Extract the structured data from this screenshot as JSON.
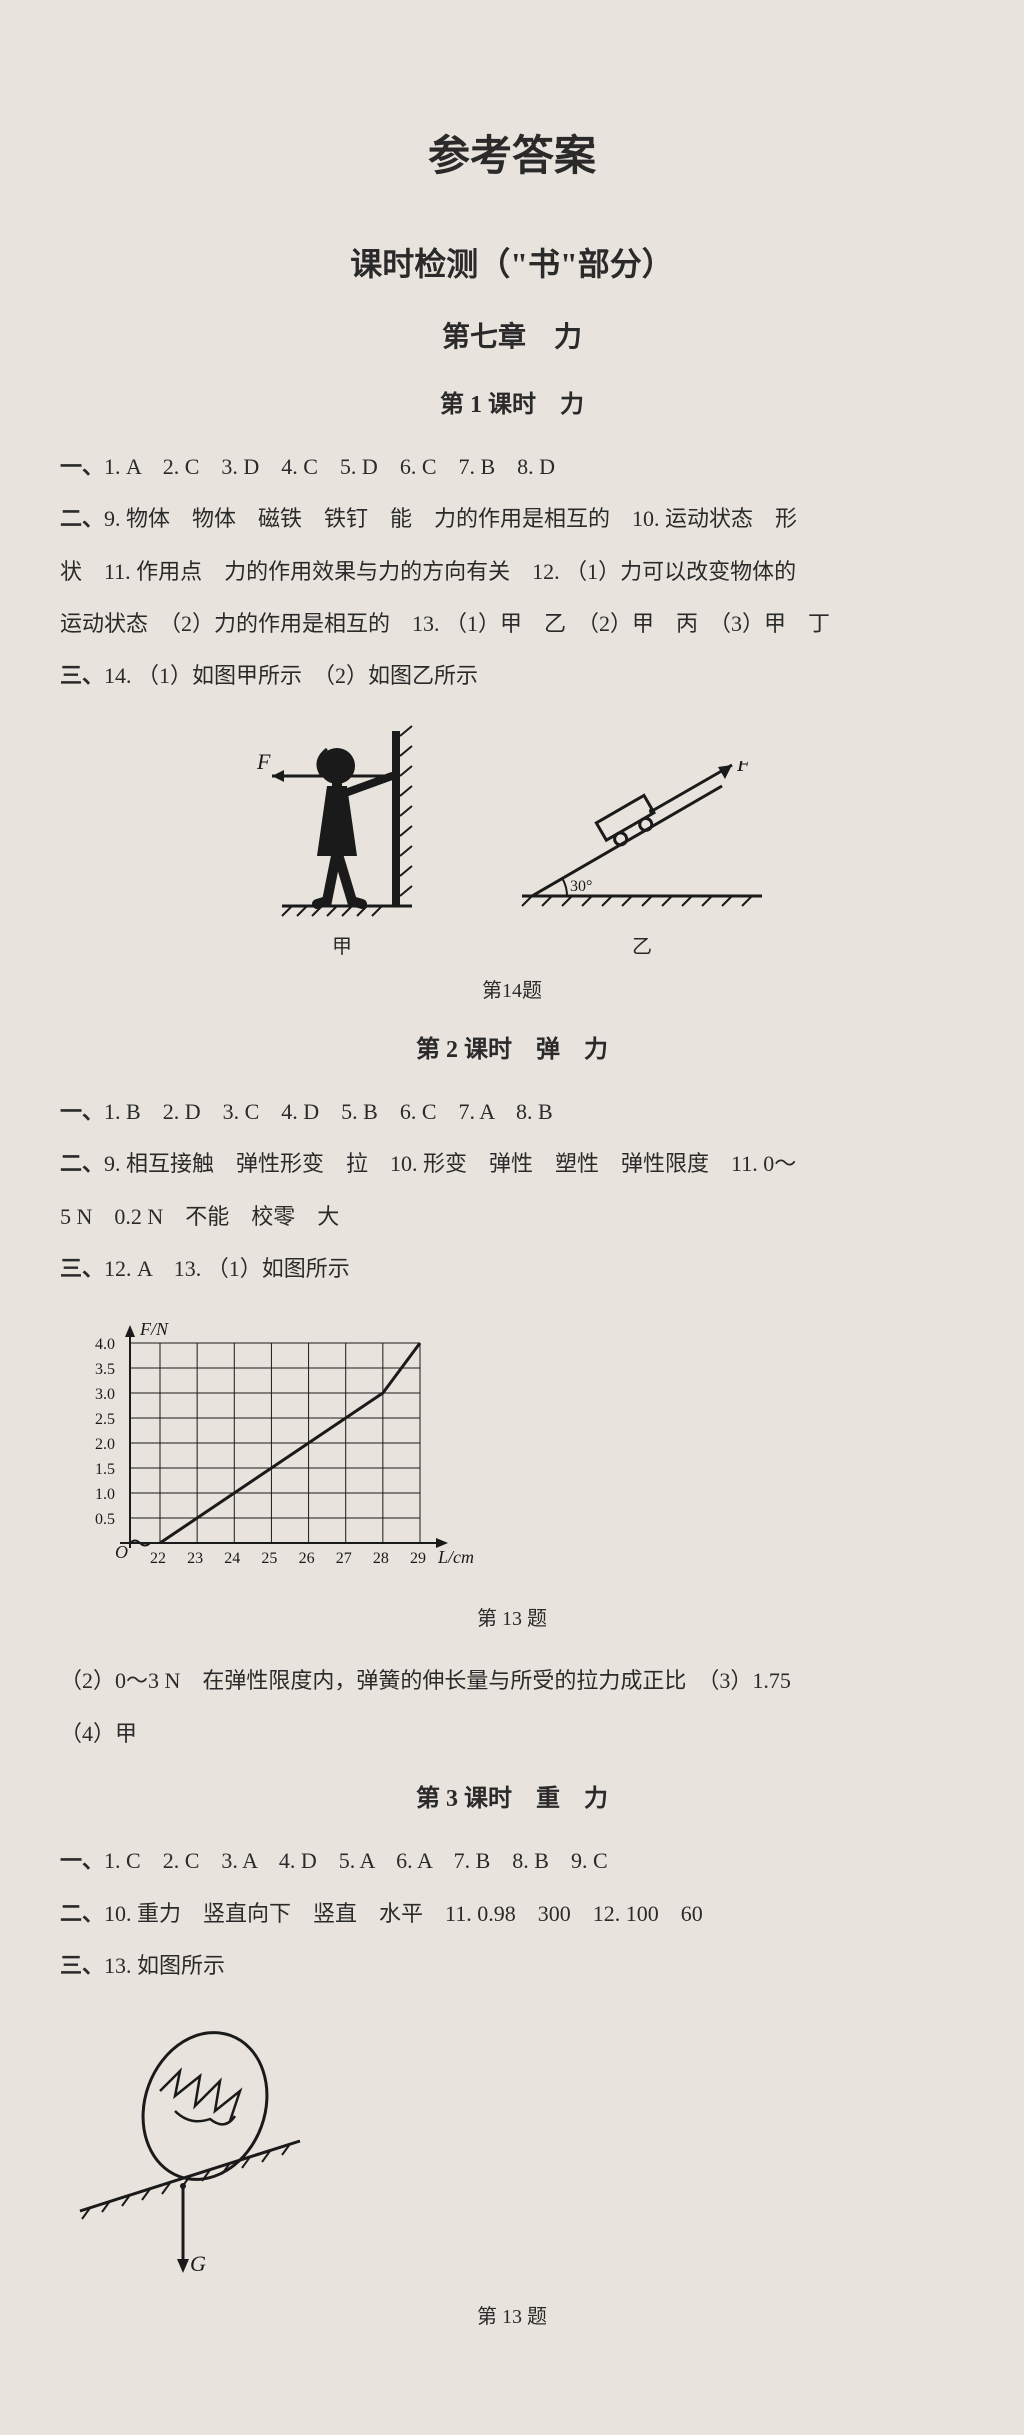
{
  "main_title": "参考答案",
  "section_title": "课时检测（\"书\"部分）",
  "chapter_title": "第七章　力",
  "lesson1": {
    "title": "第 1 课时　力",
    "part1_label": "一、",
    "part1_answers": "1. A　2. C　3. D　4. C　5. D　6. C　7. B　8. D",
    "part2_label": "二、",
    "part2_line1": "9. 物体　物体　磁铁　铁钉　能　力的作用是相互的　10. 运动状态　形",
    "part2_line2": "状　11. 作用点　力的作用效果与力的方向有关　12. （1）力可以改变物体的",
    "part2_line3": "运动状态　（2）力的作用是相互的　13. （1）甲　乙　（2）甲　丙　（3）甲　丁",
    "part3_label": "三、",
    "part3_line1": "14. （1）如图甲所示　（2）如图乙所示",
    "figure14_jia_label": "甲",
    "figure14_yi_label": "乙",
    "figure14_caption": "第14题",
    "figure14_force_label": "F",
    "figure14_angle_label": "30°"
  },
  "lesson2": {
    "title": "第 2 课时　弹　力",
    "part1_label": "一、",
    "part1_answers": "1. B　2. D　3. C　4. D　5. B　6. C　7. A　8. B",
    "part2_label": "二、",
    "part2_line1": "9. 相互接触　弹性形变　拉　10. 形变　弹性　塑性　弹性限度　11. 0～",
    "part2_line2": "5 N　0.2 N　不能　校零　大",
    "part3_label": "三、",
    "part3_line1": "12. A　13. （1）如图所示",
    "figure13_caption": "第 13 题",
    "chart": {
      "type": "line",
      "y_label": "F/N",
      "x_label": "L/cm",
      "y_ticks": [
        "0.5",
        "1.0",
        "1.5",
        "2.0",
        "2.5",
        "3.0",
        "3.5",
        "4.0"
      ],
      "x_ticks": [
        "22",
        "23",
        "24",
        "25",
        "26",
        "27",
        "28",
        "29"
      ],
      "line_color": "#1a1a1a",
      "grid_color": "#1a1a1a",
      "data_points": [
        {
          "x": 22,
          "y": 0
        },
        {
          "x": 23,
          "y": 0.5
        },
        {
          "x": 24,
          "y": 1.0
        },
        {
          "x": 25,
          "y": 1.5
        },
        {
          "x": 26,
          "y": 2.0
        },
        {
          "x": 27,
          "y": 2.5
        },
        {
          "x": 28,
          "y": 3.0
        },
        {
          "x": 28.5,
          "y": 3.5
        },
        {
          "x": 29,
          "y": 4.0
        }
      ]
    },
    "part3_line2": "（2）0～3 N　在弹性限度内，弹簧的伸长量与所受的拉力成正比　（3）1.75",
    "part3_line3": "（4）甲"
  },
  "lesson3": {
    "title": "第 3 课时　重　力",
    "part1_label": "一、",
    "part1_answers": "1. C　2. C　3. A　4. D　5. A　6. A　7. B　8. B　9. C",
    "part2_label": "二、",
    "part2_line1": "10. 重力　竖直向下　竖直　水平　11. 0.98　300　12. 100　60",
    "part3_label": "三、",
    "part3_line1": "13. 如图所示",
    "figure13_caption": "第 13 题",
    "figure13_force_label": "G"
  }
}
